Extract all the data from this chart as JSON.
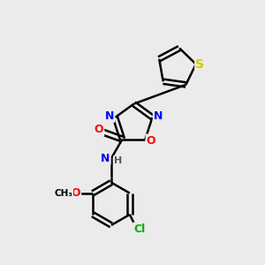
{
  "bg_color": "#ebebeb",
  "bond_color": "#000000",
  "bond_width": 1.8,
  "atom_colors": {
    "S": "#cccc00",
    "N": "#0000ff",
    "O": "#ff0000",
    "Cl": "#00aa00",
    "C": "#000000",
    "H": "#555555"
  },
  "figsize": [
    3.0,
    3.0
  ],
  "dpi": 100
}
